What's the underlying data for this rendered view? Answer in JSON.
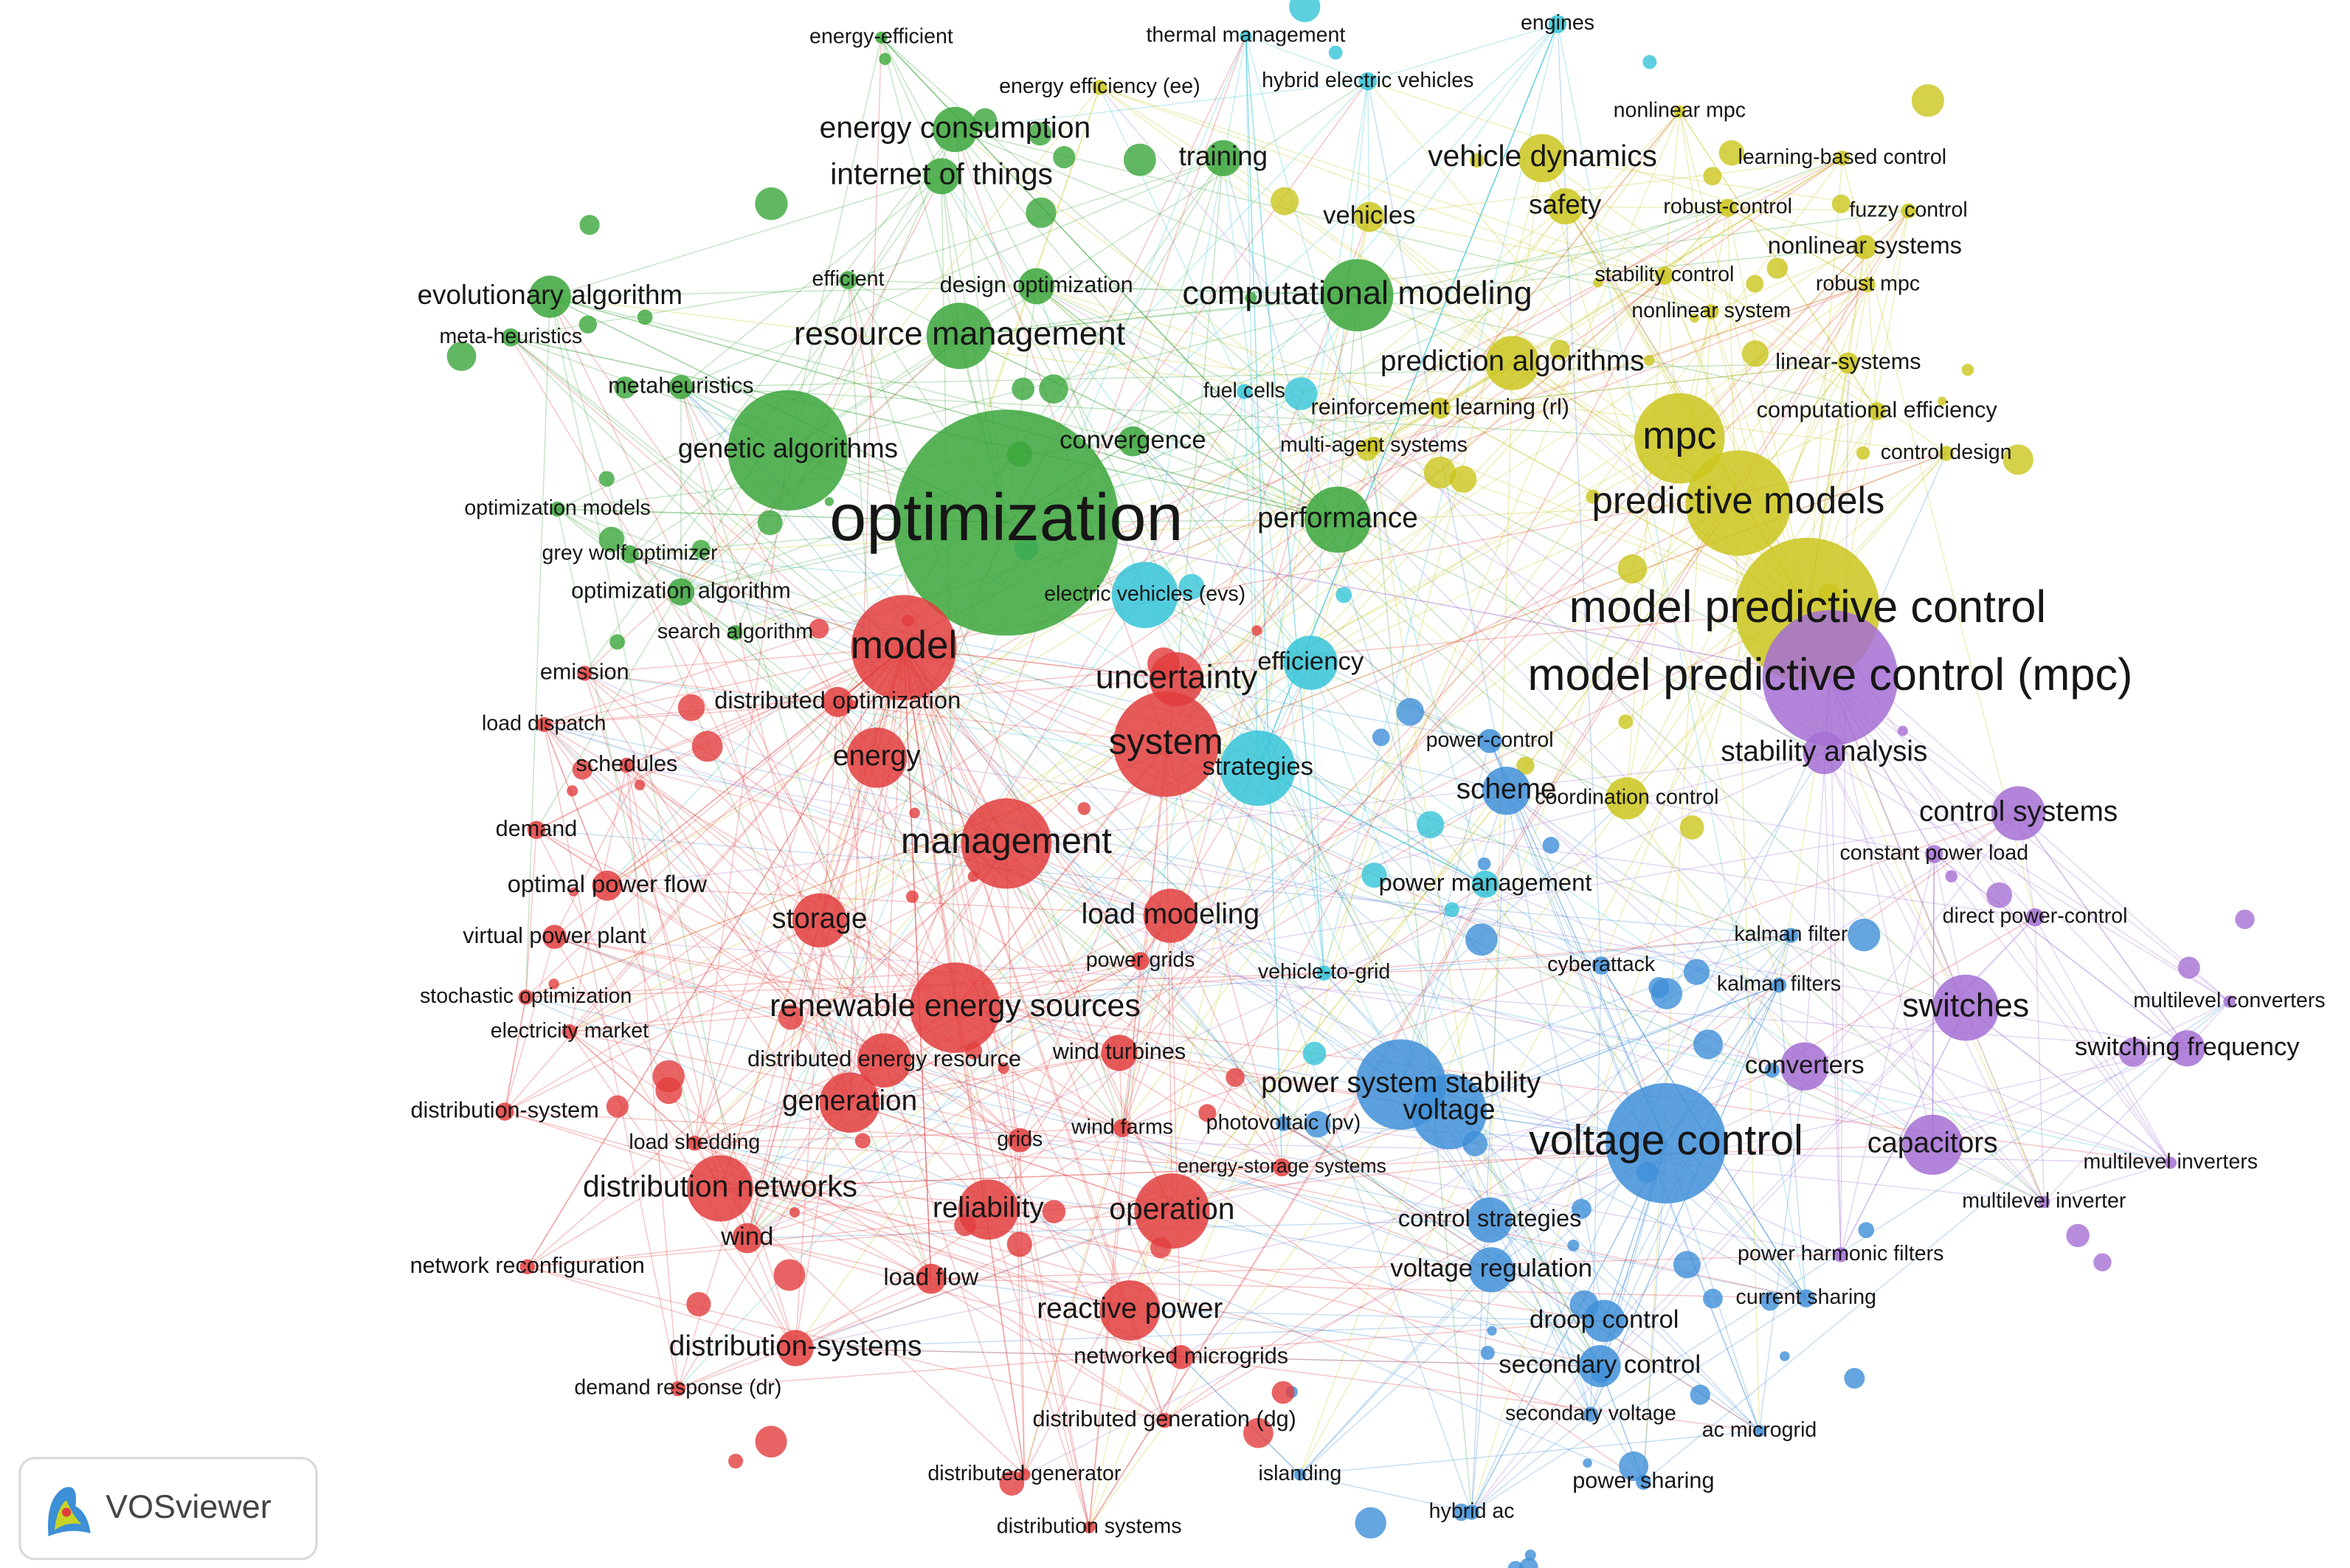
{
  "clusters": [
    {
      "color": "#3ba63b",
      "nodes": [
        "optimization",
        "energy consumption",
        "internet of things",
        "training",
        "evolutionary algorithm",
        "meta-heuristics",
        "metaheuristics",
        "resource management",
        "efficient",
        "design optimization",
        "computational modeling",
        "genetic algorithms",
        "convergence",
        "optimization models",
        "grey wolf optimizer",
        "optimization algorithm",
        "search algorithm",
        "performance",
        "energy-efficient"
      ]
    },
    {
      "color": "#35c4d8",
      "nodes": [
        "thermal management",
        "hybrid electric vehicles",
        "engines",
        "fuel cells",
        "electric vehicles (evs)",
        "efficiency",
        "strategies",
        "power management",
        "vehicle-to-grid"
      ]
    },
    {
      "color": "#cbc51d",
      "nodes": [
        "energy efficiency (ee)",
        "nonlinear mpc",
        "learning-based control",
        "vehicle dynamics",
        "safety",
        "vehicles",
        "robust-control",
        "fuzzy control",
        "nonlinear systems",
        "stability control",
        "robust mpc",
        "nonlinear system",
        "linear-systems",
        "prediction algorithms",
        "reinforcement learning (rl)",
        "multi-agent systems",
        "computational efficiency",
        "mpc",
        "control design",
        "predictive models",
        "model predictive control",
        "coordination control"
      ]
    },
    {
      "color": "#a56fd3",
      "nodes": [
        "model predictive control (mpc)",
        "stability analysis",
        "control systems",
        "constant power load",
        "direct power-control",
        "switches",
        "multilevel converters",
        "switching frequency",
        "converters",
        "capacitors",
        "multilevel inverters",
        "multilevel inverter",
        "power harmonic filters"
      ]
    },
    {
      "color": "#3f8fd8",
      "nodes": [
        "power-control",
        "scheme",
        "cyberattack",
        "kalman filter",
        "kalman filters",
        "power system stability",
        "voltage",
        "voltage control",
        "photovoltaic (pv)",
        "control strategies",
        "voltage regulation",
        "current sharing",
        "droop control",
        "secondary control",
        "secondary voltage",
        "ac microgrid",
        "power sharing",
        "hybrid ac",
        "islanding"
      ]
    },
    {
      "color": "#e23d3d",
      "nodes": [
        "emission",
        "model",
        "uncertainty",
        "distributed optimization",
        "load dispatch",
        "system",
        "energy",
        "schedules",
        "demand",
        "management",
        "optimal power flow",
        "storage",
        "load modeling",
        "virtual power plant",
        "power grids",
        "stochastic optimization",
        "renewable energy sources",
        "electricity market",
        "wind turbines",
        "distributed energy resource",
        "distribution-system",
        "generation",
        "load shedding",
        "grids",
        "wind farms",
        "energy-storage systems",
        "distribution networks",
        "reliability",
        "operation",
        "wind",
        "network reconfiguration",
        "load flow",
        "reactive power",
        "distribution-systems",
        "networked microgrids",
        "demand response (dr)",
        "distributed generation (dg)",
        "distributed generator",
        "distribution systems"
      ]
    }
  ],
  "logo": {
    "text": "VOSviewer"
  }
}
